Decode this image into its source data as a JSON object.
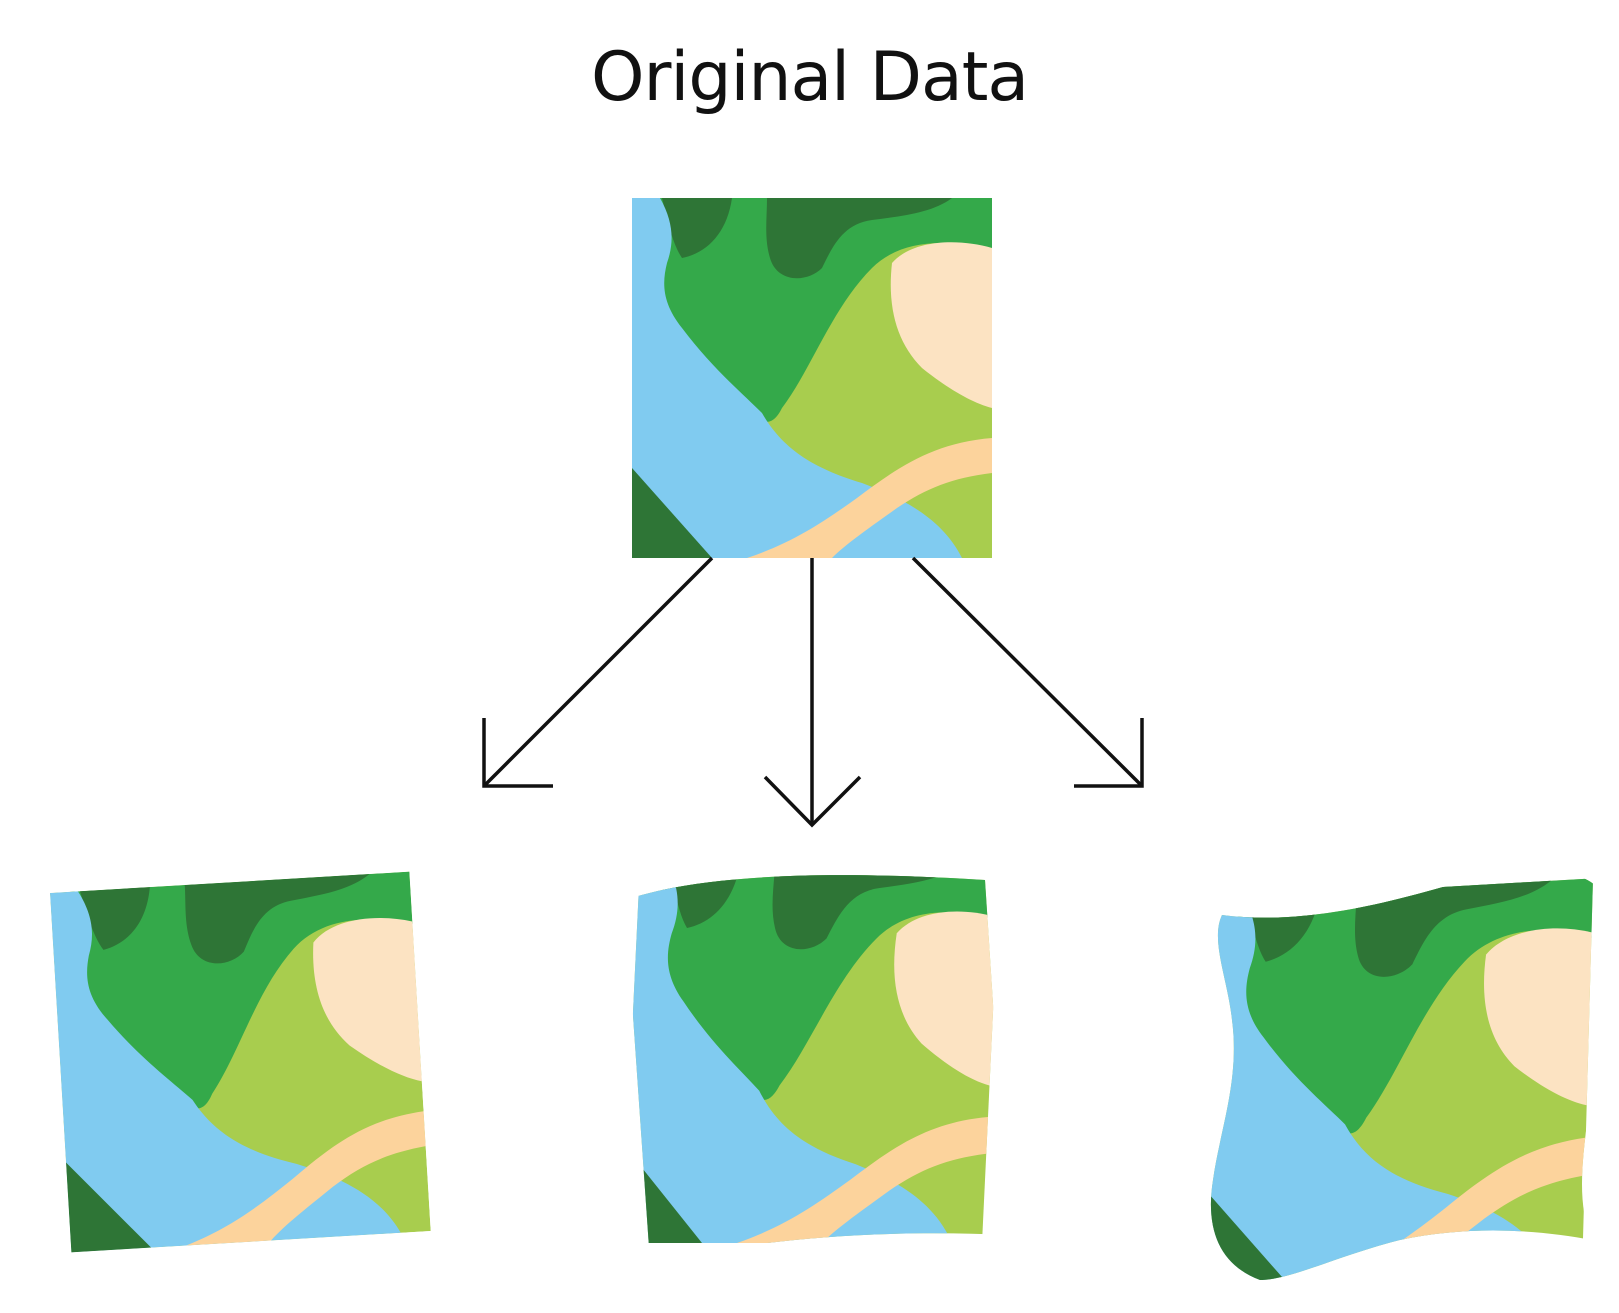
{
  "title": "Original Data",
  "palette": {
    "water": "#80cbf0",
    "forest": "#34a94a",
    "dark_forest": "#2e7536",
    "grassland": "#a8cd4e",
    "sand": "#fce3c2",
    "path": "#fcd39c",
    "arrow": "#111111"
  },
  "tiles": [
    {
      "name": "original-map-tile"
    },
    {
      "name": "rotated-map-tile"
    },
    {
      "name": "skewed-map-tile"
    },
    {
      "name": "warped-map-tile"
    }
  ],
  "arrows": [
    {
      "name": "arrow-to-rotated"
    },
    {
      "name": "arrow-to-skewed"
    },
    {
      "name": "arrow-to-warped"
    }
  ]
}
